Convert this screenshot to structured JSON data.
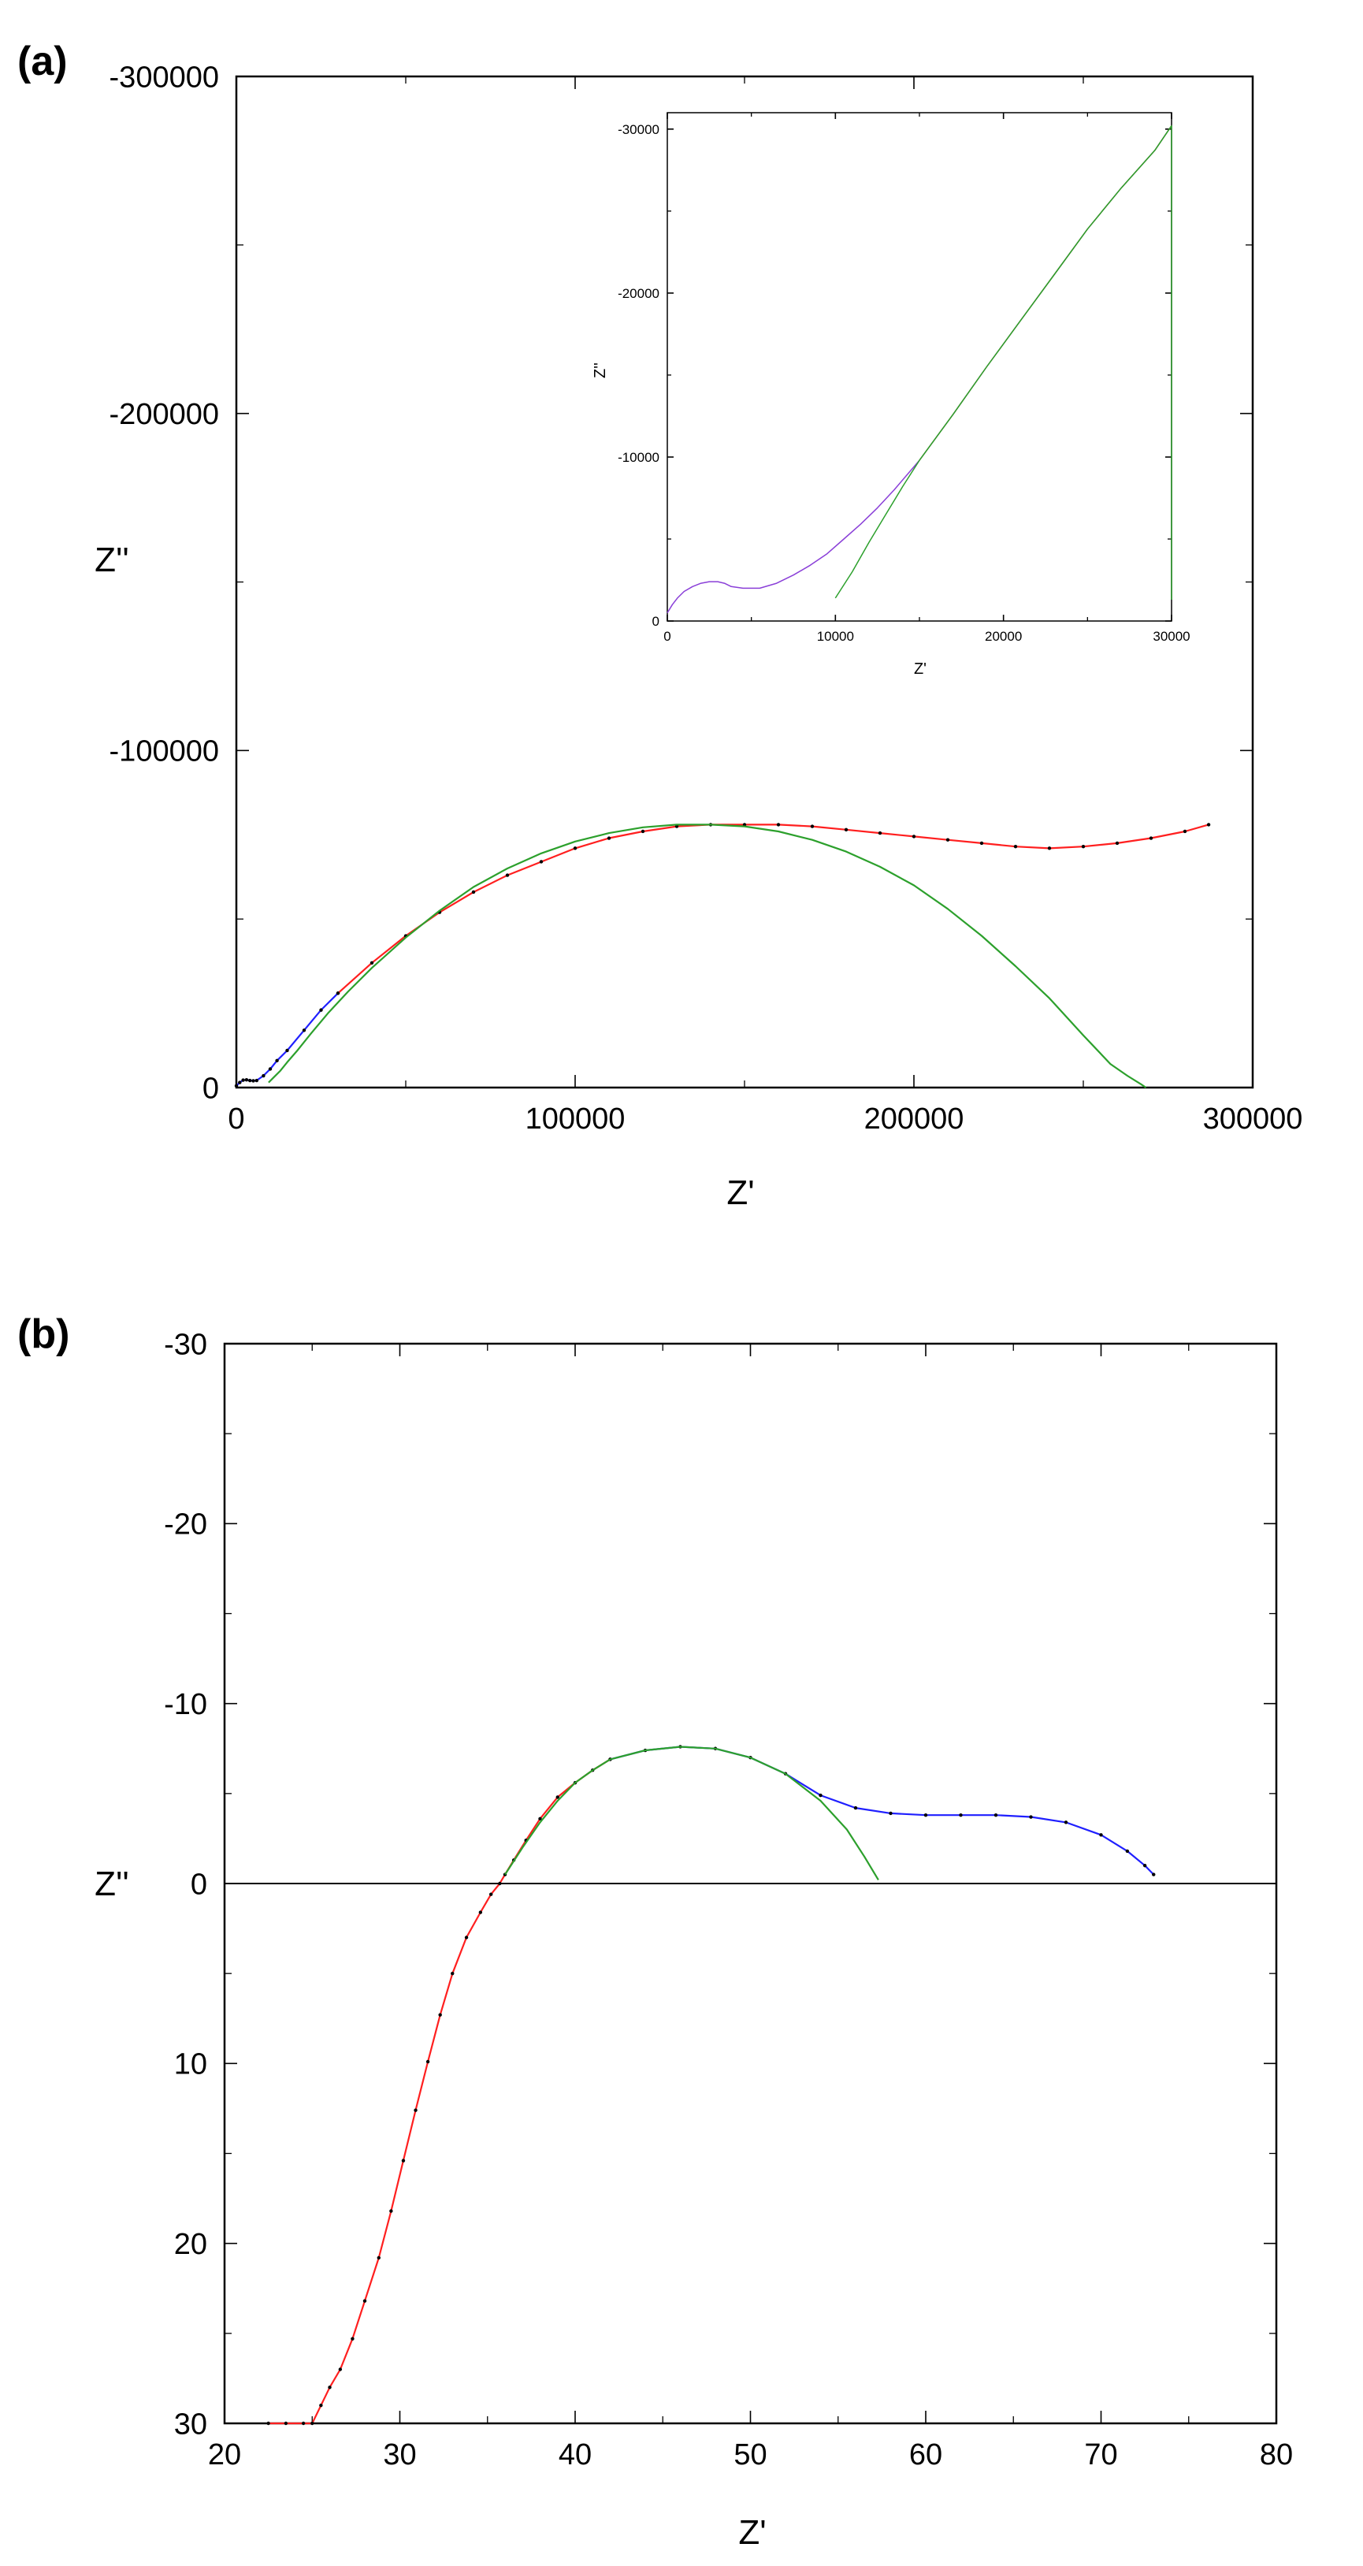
{
  "colors": {
    "axis": "#000000",
    "fit": "#2ca02c",
    "data_low": "#1f1fff",
    "data_high": "#ff1f1f",
    "marker": "#000000",
    "zero_line": "#000000"
  },
  "chart_data": [
    {
      "type": "line",
      "id": "a",
      "panel_label": "(a)",
      "title": "",
      "xlabel": "Z'",
      "ylabel": "Z''",
      "xlim": [
        0,
        300000
      ],
      "ylim": [
        0,
        -300000
      ],
      "x_ticks": [
        0,
        100000,
        200000,
        300000
      ],
      "y_ticks": [
        0,
        -100000,
        -200000,
        -300000
      ],
      "x_tick_labels": [
        "0",
        "100000",
        "200000",
        "300000"
      ],
      "y_tick_labels": [
        "0",
        "-100000",
        "-200000",
        "-300000"
      ],
      "grid": false,
      "legend": "none",
      "series": [
        {
          "role": "data-blue",
          "x": [
            0,
            1000,
            2000,
            3000,
            4000,
            5000,
            6000,
            8000,
            10000,
            12000,
            15000,
            20000,
            25000,
            30000
          ],
          "y": [
            -500,
            -1500,
            -2200,
            -2300,
            -2100,
            -2000,
            -2100,
            -3500,
            -5500,
            -8000,
            -11000,
            -17000,
            -23000,
            -28000
          ]
        },
        {
          "role": "data-red",
          "x": [
            30000,
            40000,
            50000,
            60000,
            70000,
            80000,
            90000,
            100000,
            110000,
            120000,
            130000,
            140000,
            150000,
            160000,
            170000,
            180000,
            190000,
            200000,
            210000,
            220000,
            230000,
            240000,
            250000,
            260000,
            270000,
            280000,
            287000
          ],
          "y": [
            -28000,
            -37000,
            -45000,
            -52000,
            -58000,
            -63000,
            -67000,
            -71000,
            -74000,
            -76000,
            -77500,
            -78000,
            -78000,
            -78000,
            -77500,
            -76500,
            -75500,
            -74500,
            -73500,
            -72500,
            -71500,
            -71000,
            -71500,
            -72500,
            -74000,
            -76000,
            -78000
          ]
        },
        {
          "role": "fit-green",
          "x": [
            9500,
            11000,
            13000,
            15000,
            18000,
            22000,
            27000,
            33000,
            40000,
            50000,
            60000,
            70000,
            80000,
            90000,
            100000,
            110000,
            120000,
            130000,
            140000,
            150000,
            160000,
            170000,
            180000,
            190000,
            200000,
            210000,
            220000,
            230000,
            240000,
            250000,
            258000,
            263000,
            267000,
            268500
          ],
          "y": [
            -1500,
            -3000,
            -5000,
            -7500,
            -11000,
            -16000,
            -22000,
            -28500,
            -35500,
            -44500,
            -52500,
            -59500,
            -65000,
            -69500,
            -73000,
            -75500,
            -77200,
            -78000,
            -78000,
            -77500,
            -76000,
            -73500,
            -70000,
            -65500,
            -60000,
            -53000,
            -45000,
            -36000,
            -26500,
            -15500,
            -7000,
            -3500,
            -1000,
            0
          ]
        }
      ]
    },
    {
      "type": "line",
      "id": "a-inset",
      "title": "",
      "xlabel": "Z'",
      "ylabel": "Z''",
      "xlim": [
        0,
        30000
      ],
      "ylim": [
        0,
        -31000
      ],
      "x_ticks": [
        0,
        10000,
        20000,
        30000
      ],
      "y_ticks": [
        0,
        -10000,
        -20000,
        -30000
      ],
      "x_tick_labels": [
        "0",
        "10000",
        "20000",
        "30000"
      ],
      "y_tick_labels": [
        "0",
        "-10000",
        "-20000",
        "-30000"
      ],
      "grid": false,
      "legend": "none",
      "series": [
        {
          "role": "data-purple",
          "x": [
            0,
            300,
            600,
            1000,
            1500,
            2000,
            2500,
            3000,
            3400,
            3800,
            4500,
            5500,
            6500,
            7500,
            8500,
            9500,
            10500,
            11500,
            12500,
            13500,
            14500,
            15000
          ],
          "y": [
            -500,
            -1000,
            -1400,
            -1800,
            -2100,
            -2300,
            -2400,
            -2400,
            -2300,
            -2100,
            -2000,
            -2000,
            -2300,
            -2800,
            -3400,
            -4100,
            -5000,
            -5900,
            -6900,
            -8000,
            -9200,
            -9800
          ]
        },
        {
          "role": "data-brown",
          "x": [
            15000,
            17000,
            19000,
            21000,
            23000,
            25000,
            27000,
            29000,
            30000
          ],
          "y": [
            -9800,
            -12600,
            -15500,
            -18300,
            -21100,
            -23900,
            -26400,
            -28700,
            -30200
          ]
        },
        {
          "role": "fit-green",
          "x": [
            10000,
            11000,
            12000,
            13000,
            14000,
            15000,
            17000,
            19000,
            21000,
            23000,
            25000,
            27000,
            29000,
            30000,
            30000
          ],
          "y": [
            -1400,
            -3000,
            -4800,
            -6500,
            -8200,
            -9800,
            -12600,
            -15500,
            -18300,
            -21100,
            -23900,
            -26400,
            -28700,
            -30200,
            -1300
          ]
        }
      ]
    },
    {
      "type": "line",
      "id": "b",
      "panel_label": "(b)",
      "title": "",
      "xlabel": "Z'",
      "ylabel": "Z''",
      "xlim": [
        20,
        80
      ],
      "ylim": [
        30,
        -30
      ],
      "x_ticks": [
        20,
        30,
        40,
        50,
        60,
        70,
        80
      ],
      "y_ticks": [
        30,
        20,
        10,
        0,
        -10,
        -20,
        -30
      ],
      "x_tick_labels": [
        "20",
        "30",
        "40",
        "50",
        "60",
        "70",
        "80"
      ],
      "y_tick_labels": [
        "30",
        "20",
        "10",
        "0",
        "-10",
        "-20",
        "-30"
      ],
      "grid": false,
      "zero_line": true,
      "legend": "none",
      "series": [
        {
          "role": "data-red",
          "x": [
            22.5,
            23.5,
            24.5,
            25.0,
            25.5,
            26.0,
            26.6,
            27.3,
            28.0,
            28.8,
            29.5,
            30.2,
            30.9,
            31.6,
            32.3,
            33.0,
            33.8,
            34.6,
            35.2,
            35.7,
            36.0,
            36.5,
            37.2,
            38.0,
            39.0,
            40.0,
            41.0,
            42.0
          ],
          "y": [
            30,
            30,
            30,
            30,
            29,
            28,
            27,
            25.3,
            23.2,
            20.8,
            18.2,
            15.4,
            12.6,
            9.9,
            7.3,
            5.0,
            3.0,
            1.6,
            0.6,
            0,
            -0.5,
            -1.3,
            -2.4,
            -3.6,
            -4.8,
            -5.6,
            -6.3,
            -6.9
          ]
        },
        {
          "role": "data-blue",
          "x": [
            42.0,
            44.0,
            46.0,
            48.0,
            50.0,
            52.0,
            54.0,
            56.0,
            58.0,
            60.0,
            62.0,
            64.0,
            66.0,
            68.0,
            70.0,
            71.5,
            72.5,
            73.0
          ],
          "y": [
            -6.9,
            -7.4,
            -7.6,
            -7.5,
            -7.0,
            -6.1,
            -4.9,
            -4.2,
            -3.9,
            -3.8,
            -3.8,
            -3.8,
            -3.7,
            -3.4,
            -2.7,
            -1.8,
            -1.0,
            -0.5
          ]
        },
        {
          "role": "fit-green",
          "x": [
            36.0,
            37.0,
            38.0,
            39.0,
            40.0,
            41.0,
            42.0,
            44.0,
            46.0,
            48.0,
            50.0,
            52.0,
            54.0,
            55.5,
            56.5,
            57.3
          ],
          "y": [
            -0.5,
            -2.0,
            -3.4,
            -4.6,
            -5.6,
            -6.3,
            -6.9,
            -7.4,
            -7.6,
            -7.5,
            -7.0,
            -6.1,
            -4.6,
            -3.0,
            -1.5,
            -0.2
          ]
        }
      ]
    }
  ]
}
